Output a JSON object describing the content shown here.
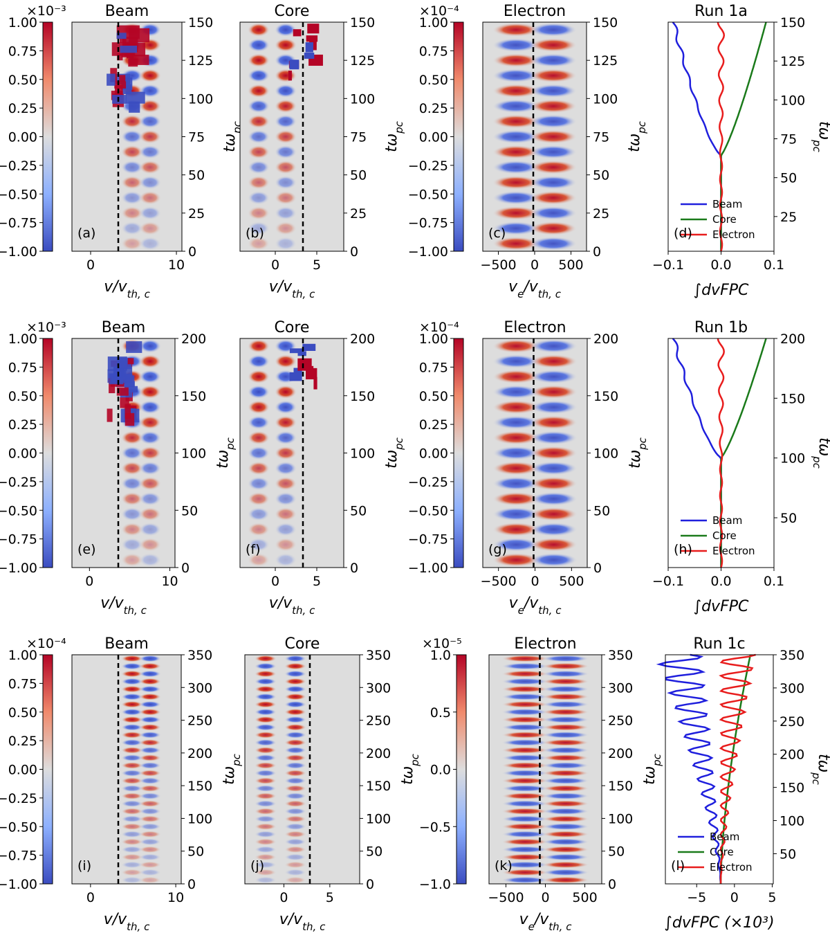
{
  "chart_data": [
    {
      "run": "1a",
      "colorbar_scale": "×10⁻³",
      "colorbar_ticks": [
        "1.00",
        "0.75",
        "0.50",
        "0.25",
        "0.00",
        "−0.25",
        "−0.50",
        "−0.75",
        "−1.00"
      ],
      "electron_colorbar_scale": "×10⁻⁴",
      "electron_colorbar_ticks": [
        "1.00",
        "0.75",
        "0.50",
        "0.25",
        "0.00",
        "−0.25",
        "−0.50",
        "−0.75",
        "−1.00"
      ],
      "time_ticks": [
        "0",
        "25",
        "50",
        "75",
        "100",
        "125",
        "150"
      ],
      "time_label": "tω",
      "time_label_sub": "pc",
      "integral_time_ticks": [
        "25",
        "50",
        "75",
        "100",
        "125",
        "150"
      ],
      "integral_label": "∫dvFPC",
      "integral_ticks": [
        "−0.1",
        "0.0",
        "0.1"
      ],
      "panels": [
        {
          "label": "(a)",
          "title": "Beam",
          "xticks": [
            "0",
            "10"
          ],
          "xlabel": "v/v",
          "xlabel_sub": "th, c"
        },
        {
          "label": "(b)",
          "title": "Core",
          "xticks": [
            "0",
            "5"
          ],
          "xlabel": "v/v",
          "xlabel_sub": "th, c"
        },
        {
          "label": "(c)",
          "title": "Electron",
          "xticks": [
            "−500",
            "0",
            "500"
          ],
          "xlabel": "v",
          "xlabel_e": "e",
          "xlabel_rest": "/v",
          "xlabel_sub": "th, c"
        },
        {
          "label": "(d)",
          "title": "Run 1a"
        }
      ],
      "legend": [
        "Beam",
        "Core",
        "Electron"
      ]
    },
    {
      "run": "1b",
      "colorbar_scale": "×10⁻³",
      "colorbar_ticks": [
        "1.00",
        "0.75",
        "0.50",
        "0.25",
        "0.00",
        "−0.25",
        "−0.50",
        "−0.75",
        "−1.00"
      ],
      "electron_colorbar_scale": "×10⁻⁴",
      "electron_colorbar_ticks": [
        "1.00",
        "0.75",
        "0.50",
        "0.25",
        "0.00",
        "−0.25",
        "−0.50",
        "−0.75",
        "−1.00"
      ],
      "time_ticks": [
        "0",
        "50",
        "100",
        "150",
        "200"
      ],
      "time_label": "tω",
      "time_label_sub": "pc",
      "integral_time_ticks": [
        "50",
        "100",
        "150",
        "200"
      ],
      "integral_label": "∫dvFPC",
      "integral_ticks": [
        "−0.1",
        "0.0",
        "0.1"
      ],
      "panels": [
        {
          "label": "(e)",
          "title": "Beam",
          "xticks": [
            "0",
            "10"
          ],
          "xlabel": "v/v",
          "xlabel_sub": "th, c"
        },
        {
          "label": "(f)",
          "title": "Core",
          "xticks": [
            "0",
            "5"
          ],
          "xlabel": "v/v",
          "xlabel_sub": "th, c"
        },
        {
          "label": "(g)",
          "title": "Electron",
          "xticks": [
            "−500",
            "0",
            "500"
          ],
          "xlabel": "v",
          "xlabel_e": "e",
          "xlabel_rest": "/v",
          "xlabel_sub": "th, c"
        },
        {
          "label": "(h)",
          "title": "Run 1b"
        }
      ],
      "legend": [
        "Beam",
        "Core",
        "Electron"
      ]
    },
    {
      "run": "1c",
      "colorbar_scale": "×10⁻⁴",
      "colorbar_ticks": [
        "1.00",
        "0.75",
        "0.50",
        "0.25",
        "0.00",
        "−0.25",
        "−0.50",
        "−0.75",
        "−1.00"
      ],
      "electron_colorbar_scale": "×10⁻⁵",
      "electron_colorbar_ticks": [
        "1.0",
        "0.5",
        "0.0",
        "−0.5",
        "−1.0"
      ],
      "time_ticks": [
        "0",
        "50",
        "100",
        "150",
        "200",
        "250",
        "300",
        "350"
      ],
      "time_label": "tω",
      "time_label_sub": "pc",
      "integral_time_ticks": [
        "50",
        "100",
        "150",
        "200",
        "250",
        "300",
        "350"
      ],
      "integral_label": "∫dvFPC  (×10³)",
      "integral_ticks": [
        "−5",
        "0",
        "5"
      ],
      "panels": [
        {
          "label": "(i)",
          "title": "Beam",
          "xticks": [
            "0",
            "10"
          ],
          "xlabel": "v/v",
          "xlabel_sub": "th, c"
        },
        {
          "label": "(j)",
          "title": "Core",
          "xticks": [
            "0",
            "5"
          ],
          "xlabel": "v/v",
          "xlabel_sub": "th, c"
        },
        {
          "label": "(k)",
          "title": "Electron",
          "xticks": [
            "−500",
            "0",
            "500"
          ],
          "xlabel": "v",
          "xlabel_e": "e",
          "xlabel_rest": "/v",
          "xlabel_sub": "th, c"
        },
        {
          "label": "(l)",
          "title": "Run 1c"
        }
      ],
      "legend": [
        "Beam",
        "Core",
        "Electron"
      ]
    }
  ],
  "colors": {
    "beam": "#1f1fdd",
    "core": "#1a7a1a",
    "electron": "#e81c1c",
    "map_red": "#b40426",
    "map_blue": "#3b4cc0",
    "map_mid": "#dddddd"
  }
}
